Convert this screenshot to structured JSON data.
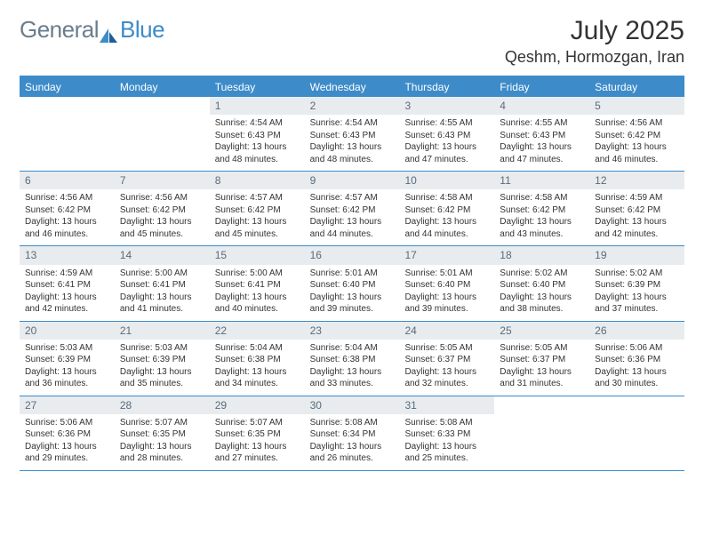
{
  "brand": {
    "part1": "General",
    "part2": "Blue"
  },
  "title": "July 2025",
  "location": "Qeshm, Hormozgan, Iran",
  "colors": {
    "accent": "#3d8bc9",
    "daynum_bg": "#e8ecef",
    "text": "#333333",
    "muted": "#5a6b7a"
  },
  "day_headers": [
    "Sunday",
    "Monday",
    "Tuesday",
    "Wednesday",
    "Thursday",
    "Friday",
    "Saturday"
  ],
  "weeks": [
    [
      {
        "n": "",
        "lines": []
      },
      {
        "n": "",
        "lines": []
      },
      {
        "n": "1",
        "lines": [
          "Sunrise: 4:54 AM",
          "Sunset: 6:43 PM",
          "Daylight: 13 hours",
          "and 48 minutes."
        ]
      },
      {
        "n": "2",
        "lines": [
          "Sunrise: 4:54 AM",
          "Sunset: 6:43 PM",
          "Daylight: 13 hours",
          "and 48 minutes."
        ]
      },
      {
        "n": "3",
        "lines": [
          "Sunrise: 4:55 AM",
          "Sunset: 6:43 PM",
          "Daylight: 13 hours",
          "and 47 minutes."
        ]
      },
      {
        "n": "4",
        "lines": [
          "Sunrise: 4:55 AM",
          "Sunset: 6:43 PM",
          "Daylight: 13 hours",
          "and 47 minutes."
        ]
      },
      {
        "n": "5",
        "lines": [
          "Sunrise: 4:56 AM",
          "Sunset: 6:42 PM",
          "Daylight: 13 hours",
          "and 46 minutes."
        ]
      }
    ],
    [
      {
        "n": "6",
        "lines": [
          "Sunrise: 4:56 AM",
          "Sunset: 6:42 PM",
          "Daylight: 13 hours",
          "and 46 minutes."
        ]
      },
      {
        "n": "7",
        "lines": [
          "Sunrise: 4:56 AM",
          "Sunset: 6:42 PM",
          "Daylight: 13 hours",
          "and 45 minutes."
        ]
      },
      {
        "n": "8",
        "lines": [
          "Sunrise: 4:57 AM",
          "Sunset: 6:42 PM",
          "Daylight: 13 hours",
          "and 45 minutes."
        ]
      },
      {
        "n": "9",
        "lines": [
          "Sunrise: 4:57 AM",
          "Sunset: 6:42 PM",
          "Daylight: 13 hours",
          "and 44 minutes."
        ]
      },
      {
        "n": "10",
        "lines": [
          "Sunrise: 4:58 AM",
          "Sunset: 6:42 PM",
          "Daylight: 13 hours",
          "and 44 minutes."
        ]
      },
      {
        "n": "11",
        "lines": [
          "Sunrise: 4:58 AM",
          "Sunset: 6:42 PM",
          "Daylight: 13 hours",
          "and 43 minutes."
        ]
      },
      {
        "n": "12",
        "lines": [
          "Sunrise: 4:59 AM",
          "Sunset: 6:42 PM",
          "Daylight: 13 hours",
          "and 42 minutes."
        ]
      }
    ],
    [
      {
        "n": "13",
        "lines": [
          "Sunrise: 4:59 AM",
          "Sunset: 6:41 PM",
          "Daylight: 13 hours",
          "and 42 minutes."
        ]
      },
      {
        "n": "14",
        "lines": [
          "Sunrise: 5:00 AM",
          "Sunset: 6:41 PM",
          "Daylight: 13 hours",
          "and 41 minutes."
        ]
      },
      {
        "n": "15",
        "lines": [
          "Sunrise: 5:00 AM",
          "Sunset: 6:41 PM",
          "Daylight: 13 hours",
          "and 40 minutes."
        ]
      },
      {
        "n": "16",
        "lines": [
          "Sunrise: 5:01 AM",
          "Sunset: 6:40 PM",
          "Daylight: 13 hours",
          "and 39 minutes."
        ]
      },
      {
        "n": "17",
        "lines": [
          "Sunrise: 5:01 AM",
          "Sunset: 6:40 PM",
          "Daylight: 13 hours",
          "and 39 minutes."
        ]
      },
      {
        "n": "18",
        "lines": [
          "Sunrise: 5:02 AM",
          "Sunset: 6:40 PM",
          "Daylight: 13 hours",
          "and 38 minutes."
        ]
      },
      {
        "n": "19",
        "lines": [
          "Sunrise: 5:02 AM",
          "Sunset: 6:39 PM",
          "Daylight: 13 hours",
          "and 37 minutes."
        ]
      }
    ],
    [
      {
        "n": "20",
        "lines": [
          "Sunrise: 5:03 AM",
          "Sunset: 6:39 PM",
          "Daylight: 13 hours",
          "and 36 minutes."
        ]
      },
      {
        "n": "21",
        "lines": [
          "Sunrise: 5:03 AM",
          "Sunset: 6:39 PM",
          "Daylight: 13 hours",
          "and 35 minutes."
        ]
      },
      {
        "n": "22",
        "lines": [
          "Sunrise: 5:04 AM",
          "Sunset: 6:38 PM",
          "Daylight: 13 hours",
          "and 34 minutes."
        ]
      },
      {
        "n": "23",
        "lines": [
          "Sunrise: 5:04 AM",
          "Sunset: 6:38 PM",
          "Daylight: 13 hours",
          "and 33 minutes."
        ]
      },
      {
        "n": "24",
        "lines": [
          "Sunrise: 5:05 AM",
          "Sunset: 6:37 PM",
          "Daylight: 13 hours",
          "and 32 minutes."
        ]
      },
      {
        "n": "25",
        "lines": [
          "Sunrise: 5:05 AM",
          "Sunset: 6:37 PM",
          "Daylight: 13 hours",
          "and 31 minutes."
        ]
      },
      {
        "n": "26",
        "lines": [
          "Sunrise: 5:06 AM",
          "Sunset: 6:36 PM",
          "Daylight: 13 hours",
          "and 30 minutes."
        ]
      }
    ],
    [
      {
        "n": "27",
        "lines": [
          "Sunrise: 5:06 AM",
          "Sunset: 6:36 PM",
          "Daylight: 13 hours",
          "and 29 minutes."
        ]
      },
      {
        "n": "28",
        "lines": [
          "Sunrise: 5:07 AM",
          "Sunset: 6:35 PM",
          "Daylight: 13 hours",
          "and 28 minutes."
        ]
      },
      {
        "n": "29",
        "lines": [
          "Sunrise: 5:07 AM",
          "Sunset: 6:35 PM",
          "Daylight: 13 hours",
          "and 27 minutes."
        ]
      },
      {
        "n": "30",
        "lines": [
          "Sunrise: 5:08 AM",
          "Sunset: 6:34 PM",
          "Daylight: 13 hours",
          "and 26 minutes."
        ]
      },
      {
        "n": "31",
        "lines": [
          "Sunrise: 5:08 AM",
          "Sunset: 6:33 PM",
          "Daylight: 13 hours",
          "and 25 minutes."
        ]
      },
      {
        "n": "",
        "lines": []
      },
      {
        "n": "",
        "lines": []
      }
    ]
  ]
}
